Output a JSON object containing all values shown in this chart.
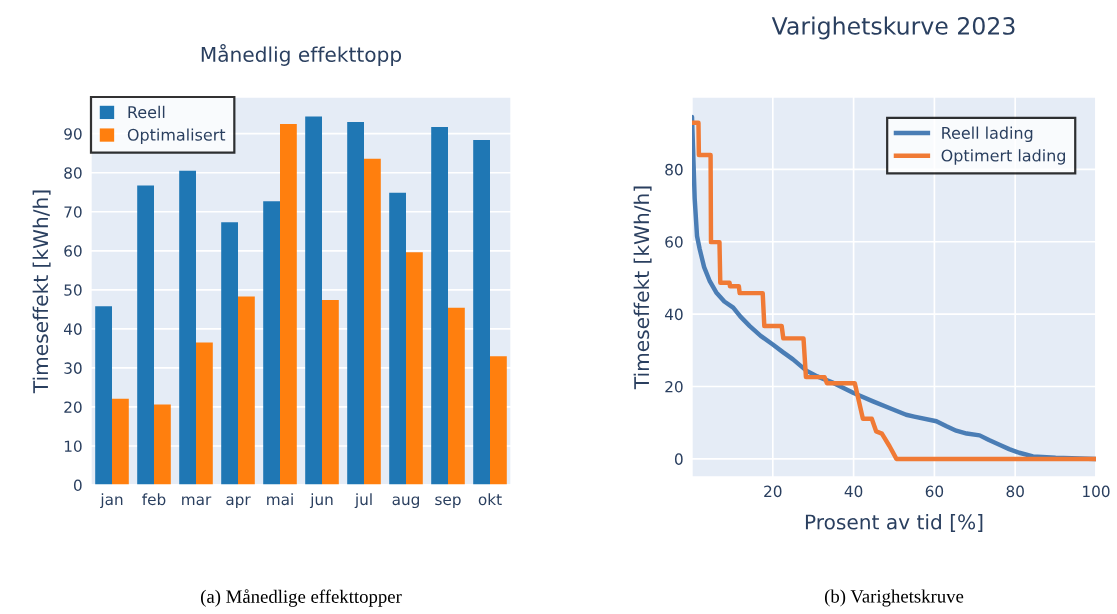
{
  "chart_data": [
    {
      "type": "bar",
      "title": "Månedlig effekttopp",
      "ylabel": "Timeseffekt [kWh/h]",
      "categories": [
        "jan",
        "feb",
        "mar",
        "apr",
        "mai",
        "jun",
        "jul",
        "aug",
        "sep",
        "okt"
      ],
      "series": [
        {
          "name": "Reell",
          "color": "#1f77b4",
          "values": [
            45.8,
            76.7,
            80.5,
            67.3,
            72.7,
            94.4,
            93.0,
            74.9,
            91.7,
            88.4
          ]
        },
        {
          "name": "Optimalisert",
          "color": "#ff7f0e",
          "values": [
            22.1,
            20.6,
            36.5,
            48.3,
            92.5,
            47.4,
            83.6,
            59.6,
            45.4,
            33.0
          ]
        }
      ],
      "ylim": [
        0,
        99.4
      ],
      "yticks": [
        0,
        10,
        20,
        30,
        40,
        50,
        60,
        70,
        80,
        90
      ],
      "grid": "y",
      "legend": "top left",
      "annotations": [
        "(a) Månedlige effekttopper"
      ]
    },
    {
      "type": "line",
      "title": "Varighetskurve 2023",
      "xlabel": "Prosent av tid [%]",
      "ylabel": "Timeseffekt [kWh/h]",
      "series": [
        {
          "name": "Reell lading",
          "color": "#4a7db5",
          "x": [
            0,
            0.25,
            0.66,
            1.24,
            1.9,
            3,
            4.4,
            6,
            8,
            10.2,
            12,
            14.3,
            17,
            20,
            22.5,
            25,
            28.3,
            31,
            35,
            40,
            44.8,
            49,
            53,
            55,
            60.5,
            63,
            65.4,
            68,
            71.2,
            73.5,
            76.1,
            78.5,
            81,
            84.4,
            90,
            100
          ],
          "values": [
            94.5,
            86,
            72,
            61.6,
            58,
            53,
            49.1,
            46,
            43.5,
            41.8,
            39.3,
            36.7,
            34,
            31.6,
            29.5,
            27.5,
            24.4,
            22.8,
            21,
            18.2,
            15.9,
            14,
            12.2,
            11.7,
            10.4,
            9,
            7.8,
            7,
            6.5,
            5.2,
            3.9,
            2.7,
            1.7,
            0.7,
            0.3,
            0
          ]
        },
        {
          "name": "Optimert lading",
          "color": "#f07a35",
          "x": [
            0,
            1.6,
            1.7,
            4.6,
            4.7,
            6.8,
            7.0,
            9.3,
            9.4,
            11.6,
            11.8,
            17.5,
            17.9,
            22.2,
            22.6,
            27.6,
            28.2,
            32.8,
            33.4,
            40.3,
            42.3,
            44.5,
            45.6,
            47.0,
            48.9,
            50.6,
            100
          ],
          "values": [
            92.9,
            92.9,
            84,
            84,
            59.9,
            59.9,
            48.7,
            48.7,
            47.7,
            47.7,
            45.8,
            45.8,
            36.7,
            36.7,
            33.3,
            33.3,
            22.6,
            22.6,
            20.9,
            20.9,
            11.1,
            11.1,
            7.6,
            7.0,
            3.5,
            0,
            0
          ]
        }
      ],
      "xlim": [
        0,
        100
      ],
      "xticks": [
        20,
        40,
        60,
        80,
        100
      ],
      "ylim": [
        -5,
        100
      ],
      "yticks": [
        0,
        20,
        40,
        60,
        80
      ],
      "grid": true,
      "legend": "top right",
      "annotations": [
        "(b) Varighetskruve"
      ]
    }
  ]
}
